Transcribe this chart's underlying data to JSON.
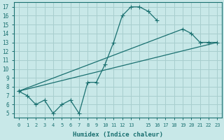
{
  "xlabel": "Humidex (Indice chaleur)",
  "bg_color": "#c8e8e8",
  "line_color": "#1a7070",
  "grid_color": "#a8cece",
  "xlim": [
    -0.5,
    23.5
  ],
  "ylim": [
    4.5,
    17.5
  ],
  "xticks": [
    0,
    1,
    2,
    3,
    4,
    5,
    6,
    7,
    8,
    9,
    10,
    11,
    12,
    13,
    15,
    16,
    17,
    18,
    19,
    20,
    21,
    22,
    23
  ],
  "yticks": [
    5,
    6,
    7,
    8,
    9,
    10,
    11,
    12,
    13,
    14,
    15,
    16,
    17
  ],
  "line1_x": [
    0,
    1,
    2,
    3,
    4,
    5,
    6,
    7,
    8,
    9,
    10,
    11,
    12,
    13,
    14,
    15,
    16
  ],
  "line1_y": [
    7.5,
    7.0,
    6.0,
    6.5,
    5.0,
    6.0,
    6.5,
    5.0,
    8.5,
    8.5,
    10.5,
    13.0,
    16.0,
    17.0,
    17.0,
    16.5,
    15.5
  ],
  "line2_x": [
    0,
    19,
    20,
    21,
    22,
    23
  ],
  "line2_y": [
    7.5,
    14.5,
    14.0,
    13.0,
    13.0,
    13.0
  ],
  "line3_x": [
    0,
    23
  ],
  "line3_y": [
    7.5,
    13.0
  ],
  "font_family": "monospace"
}
